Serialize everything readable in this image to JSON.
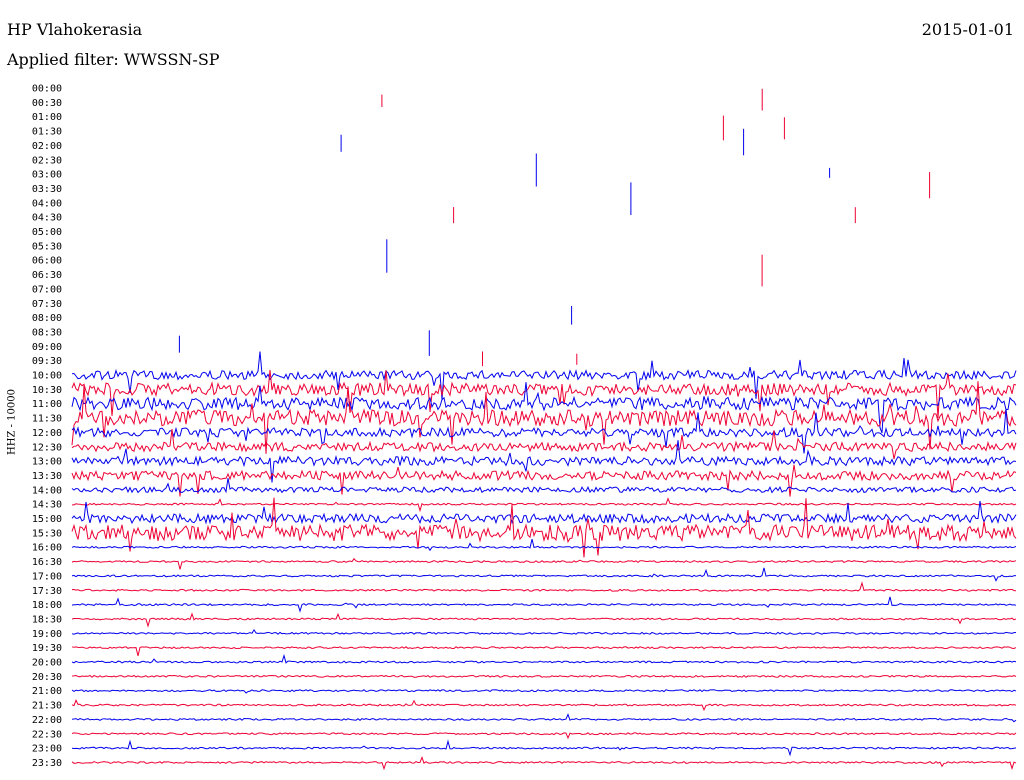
{
  "header": {
    "station": "HP Vlahokerasia",
    "date": "2015-01-01",
    "filter_label": "Applied filter: WWSSN-SP"
  },
  "colors": {
    "trace_a": "#0000ee",
    "trace_b": "#ee0033",
    "background": "#ffffff"
  },
  "chart_data": {
    "type": "line",
    "title": "HP Vlahokerasia",
    "subtitle": "Applied filter: WWSSN-SP",
    "date": "2015-01-01",
    "ylabel": "HHZ - 10000",
    "xlabel": "",
    "rows": [
      "00:00",
      "00:30",
      "01:00",
      "01:30",
      "02:00",
      "02:30",
      "03:00",
      "03:30",
      "04:00",
      "04:30",
      "05:00",
      "05:30",
      "06:00",
      "06:30",
      "07:00",
      "07:30",
      "08:00",
      "08:30",
      "09:00",
      "09:30",
      "10:00",
      "10:30",
      "11:00",
      "11:30",
      "12:00",
      "12:30",
      "13:00",
      "13:30",
      "14:00",
      "14:30",
      "15:00",
      "15:30",
      "16:00",
      "16:30",
      "17:00",
      "17:30",
      "18:00",
      "18:30",
      "19:00",
      "19:30",
      "20:00",
      "20:30",
      "21:00",
      "21:30",
      "22:00",
      "22:30",
      "23:00",
      "23:30"
    ],
    "trace_start_row": "10:00",
    "series": [
      {
        "color": "#0000ee",
        "rows": "even rows (00:00, 01:00, ...)"
      },
      {
        "color": "#ee0033",
        "rows": "odd rows (00:30, 01:30, ...)"
      }
    ],
    "activity": [
      {
        "row": "10:00",
        "level": 2
      },
      {
        "row": "10:30",
        "level": 3
      },
      {
        "row": "11:00",
        "level": 3
      },
      {
        "row": "11:30",
        "level": 4
      },
      {
        "row": "12:00",
        "level": 2
      },
      {
        "row": "12:30",
        "level": 2
      },
      {
        "row": "13:00",
        "level": 2
      },
      {
        "row": "13:30",
        "level": 2
      },
      {
        "row": "14:00",
        "level": 1
      },
      {
        "row": "15:00",
        "level": 2
      },
      {
        "row": "15:30",
        "level": 4
      }
    ],
    "grid": false,
    "legend": "none"
  }
}
